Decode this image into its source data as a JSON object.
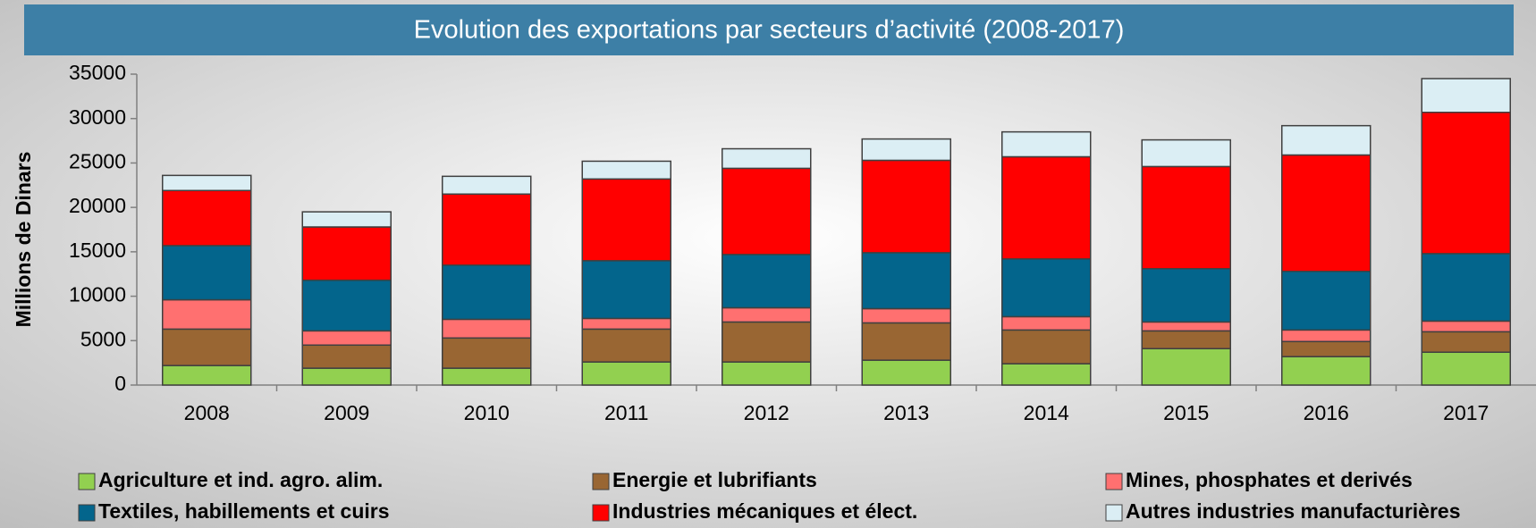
{
  "chart_data": {
    "type": "stacked_bar",
    "title": "Evolution des exportations par secteurs d’activité (2008-2017)",
    "y_axis_label": "Millions de Dinars",
    "categories": [
      "2008",
      "2009",
      "2010",
      "2011",
      "2012",
      "2013",
      "2014",
      "2015",
      "2016",
      "2017"
    ],
    "series": [
      {
        "name": "Agriculture et ind. agro. alim.",
        "color": "#92d050",
        "values": [
          2200,
          1900,
          1900,
          2600,
          2600,
          2800,
          2400,
          4100,
          3200,
          3700
        ]
      },
      {
        "name": "Energie et lubrifiants",
        "color": "#996633",
        "values": [
          4100,
          2600,
          3400,
          3700,
          4500,
          4200,
          3800,
          2000,
          1700,
          2300
        ]
      },
      {
        "name": "Mines, phosphates et derivés",
        "color": "#ff7070",
        "values": [
          3300,
          1600,
          2100,
          1200,
          1600,
          1600,
          1500,
          1000,
          1300,
          1200
        ]
      },
      {
        "name": "Textiles, habillements et cuirs",
        "color": "#03658c",
        "values": [
          6100,
          5700,
          6100,
          6500,
          6000,
          6300,
          6500,
          6000,
          6600,
          7600
        ]
      },
      {
        "name": "Industries mécaniques et élect.",
        "color": "#ff0000",
        "values": [
          6200,
          6000,
          8000,
          9200,
          9700,
          10400,
          11500,
          11500,
          13100,
          15900
        ]
      },
      {
        "name": "Autres industries manufacturières",
        "color": "#dbeef4",
        "values": [
          1700,
          1700,
          2000,
          2000,
          2200,
          2400,
          2800,
          3000,
          3300,
          3800
        ]
      }
    ],
    "ylim": [
      0,
      35000
    ],
    "yticks": [
      0,
      5000,
      10000,
      15000,
      20000,
      25000,
      30000,
      35000
    ]
  }
}
